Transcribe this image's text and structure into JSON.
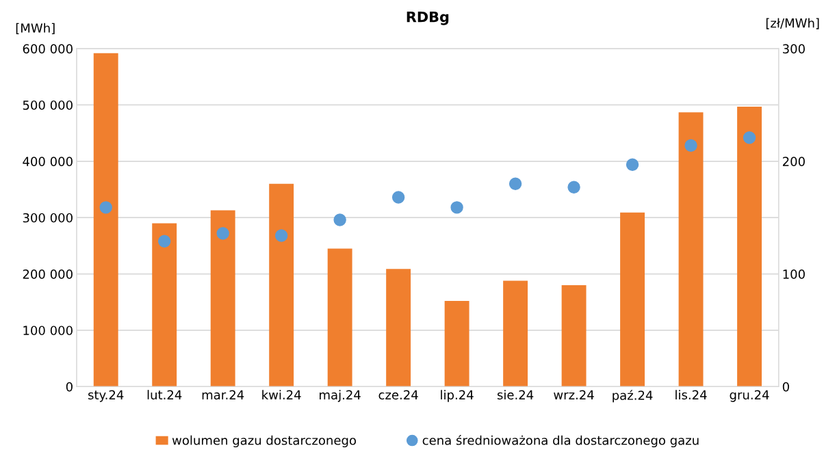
{
  "chart_data": {
    "type": "bar",
    "title": "RDBg",
    "ylabel": "[MWh]",
    "y2label": "[zł/MWh]",
    "categories": [
      "sty.24",
      "lut.24",
      "mar.24",
      "kwi.24",
      "maj.24",
      "cze.24",
      "lip.24",
      "sie.24",
      "wrz.24",
      "paź.24",
      "lis.24",
      "gru.24"
    ],
    "series": [
      {
        "name": "wolumen gazu dostarczonego",
        "color": "#f07f2e",
        "values": [
          592000,
          290000,
          313000,
          360000,
          245000,
          209000,
          152000,
          188000,
          180000,
          309000,
          487000,
          497000
        ]
      },
      {
        "name": "cena średnioważona dla dostarczonego gazu",
        "type": "scatter",
        "axis": "y2",
        "color": "#5b9bd5",
        "values": [
          159,
          129,
          136,
          134,
          148,
          168,
          159,
          180,
          177,
          197,
          214,
          221
        ]
      }
    ],
    "ylim": [
      0,
      600000
    ],
    "yticks": [
      0,
      {
        "value": 100000,
        "label": "100 000"
      },
      {
        "value": 200000,
        "label": "200 000"
      },
      {
        "value": 300000,
        "label": "300 000"
      },
      {
        "value": 400000,
        "label": "400 000"
      },
      {
        "value": 500000,
        "label": "500 000"
      },
      {
        "value": 600000,
        "label": "600 000"
      }
    ],
    "y2lim": [
      0,
      300
    ],
    "y2ticks": [
      0,
      100,
      200,
      300
    ],
    "grid": "y",
    "legend": "bottom",
    "marker": "circle"
  }
}
